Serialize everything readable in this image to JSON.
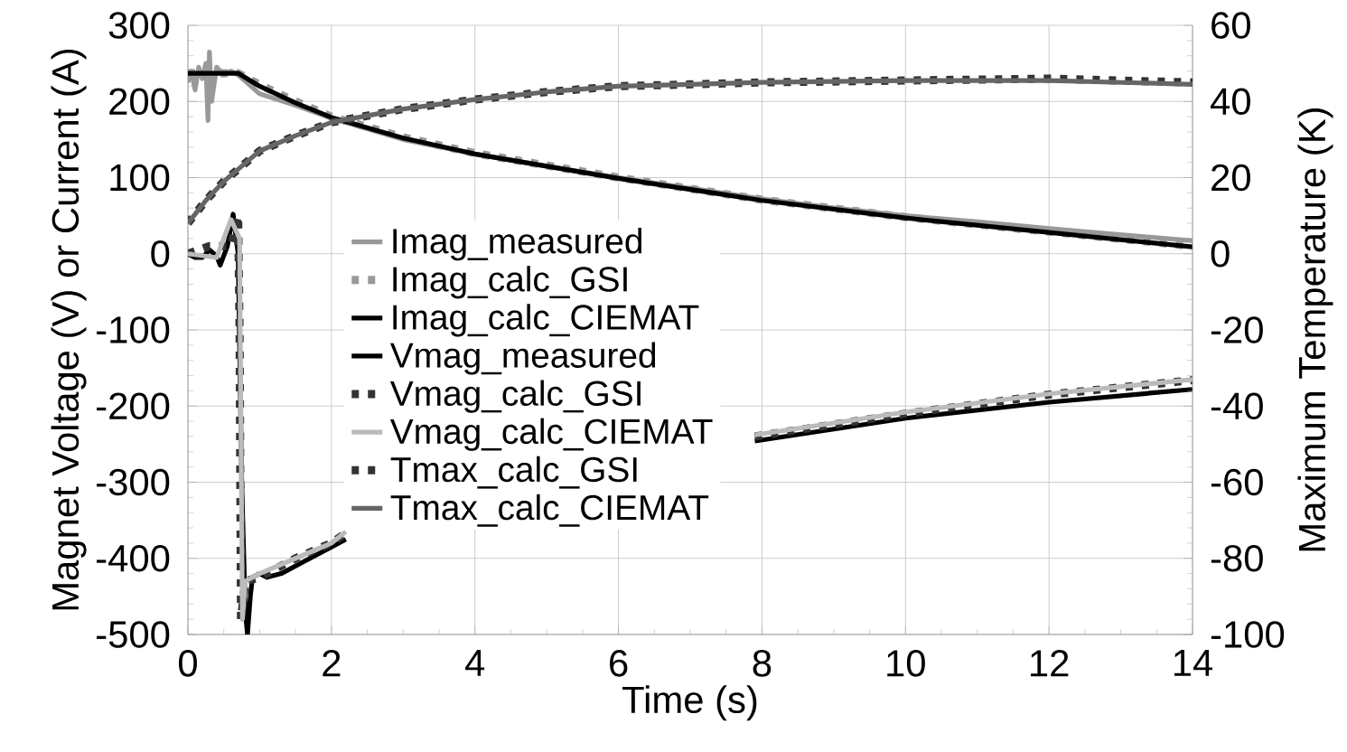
{
  "chart_data": {
    "type": "line",
    "xlabel": "Time (s)",
    "ylabel": "Magnet Voltage (V) or Current (A)",
    "y2label": "Maximum Temperature (K)",
    "xlim": [
      0,
      14
    ],
    "xticks": [
      0,
      2,
      4,
      6,
      8,
      10,
      12,
      14
    ],
    "ylim": [
      -500,
      300
    ],
    "yticks": [
      -500,
      -400,
      -300,
      -200,
      -100,
      0,
      100,
      200,
      300
    ],
    "y2lim": [
      -100,
      60
    ],
    "y2ticks": [
      -100,
      -80,
      -60,
      -40,
      -20,
      0,
      20,
      40,
      60
    ],
    "grid": true,
    "legend": "left",
    "series": [
      {
        "name": "Imag_measured",
        "color": "#999999",
        "line_style": "solid",
        "x": [
          0,
          0.05,
          0.1,
          0.15,
          0.2,
          0.25,
          0.28,
          0.3,
          0.33,
          0.4,
          0.5,
          0.6,
          0.7,
          1,
          1.5,
          2,
          3,
          4,
          5,
          6,
          7,
          8,
          9,
          10,
          11,
          12,
          13,
          14
        ],
        "values": [
          225,
          240,
          215,
          245,
          230,
          250,
          175,
          265,
          200,
          245,
          235,
          240,
          235,
          210,
          195,
          178,
          150,
          131,
          115,
          100,
          86,
          72,
          60,
          50,
          42,
          33,
          25,
          17
        ]
      },
      {
        "name": "Imag_calc_GSI",
        "color": "#999999",
        "line_style": "dotted",
        "x": [
          0,
          0.7,
          1,
          1.5,
          2,
          3,
          4,
          6,
          8,
          10,
          12,
          14
        ],
        "values": [
          237,
          237,
          222,
          200,
          180,
          153,
          132,
          100,
          71,
          48,
          29,
          10
        ]
      },
      {
        "name": "Imag_calc_CIEMAT",
        "color": "#000000",
        "line_style": "solid",
        "x": [
          0,
          0.7,
          1,
          1.5,
          2,
          3,
          4,
          6,
          8,
          10,
          12,
          14
        ],
        "values": [
          237,
          237,
          220,
          198,
          179,
          152,
          131,
          99,
          70,
          47,
          28,
          9
        ]
      },
      {
        "name": "Vmag_measured",
        "color": "#000000",
        "line_style": "solid",
        "x": [
          0,
          0.1,
          0.2,
          0.3,
          0.4,
          0.45,
          0.55,
          0.63,
          0.7,
          0.75,
          0.8,
          0.83,
          0.87,
          0.9,
          1,
          1.1,
          1.3,
          1.6,
          2,
          2.2,
          5,
          7.9,
          10,
          12,
          14
        ],
        "values": [
          0,
          -5,
          -5,
          5,
          -3,
          -15,
          10,
          52,
          0,
          -300,
          -470,
          -500,
          -450,
          -425,
          -420,
          -425,
          -420,
          -405,
          -385,
          -375,
          null,
          -246,
          -216,
          -195,
          -178
        ]
      },
      {
        "name": "Vmag_calc_GSI",
        "color": "#333333",
        "line_style": "dotted",
        "x": [
          0,
          0.3,
          0.6,
          0.7,
          0.72,
          0.74,
          0.8,
          1,
          1.5,
          2,
          2.2,
          5,
          7.9,
          10,
          12,
          14
        ],
        "values": [
          0,
          10,
          10,
          50,
          -100,
          -480,
          -430,
          -425,
          -400,
          -380,
          -367,
          null,
          -240,
          -210,
          -185,
          -166
        ]
      },
      {
        "name": "Vmag_calc_CIEMAT",
        "color": "#bbbbbb",
        "line_style": "solid",
        "x": [
          0,
          0.4,
          0.6,
          0.72,
          0.76,
          0.8,
          1,
          1.5,
          2,
          2.2,
          5,
          7.9,
          10,
          12,
          14
        ],
        "values": [
          0,
          -5,
          45,
          20,
          -480,
          -430,
          -420,
          -400,
          -380,
          -365,
          null,
          -238,
          -208,
          -184,
          -165
        ]
      },
      {
        "name": "Tmax_calc_GSI",
        "color": "#333333",
        "line_style": "dotted",
        "axis": "y2",
        "x": [
          0,
          0.25,
          0.5,
          0.75,
          1,
          1.5,
          2,
          3,
          4,
          5,
          6,
          7,
          8,
          10,
          12,
          14
        ],
        "values": [
          8,
          14,
          19,
          23,
          27,
          31,
          34.5,
          38,
          40.5,
          42.5,
          44,
          44.5,
          45,
          45.5,
          46,
          45
        ]
      },
      {
        "name": "Tmax_calc_CIEMAT",
        "color": "#666666",
        "line_style": "solid",
        "axis": "y2",
        "x": [
          0,
          0.25,
          0.5,
          0.75,
          1,
          1.5,
          2,
          3,
          4,
          5,
          6,
          7,
          8,
          10,
          12,
          14
        ],
        "values": [
          8,
          14,
          19,
          23,
          27,
          31,
          34.5,
          38,
          40.5,
          42.5,
          44,
          44.5,
          45,
          45.5,
          45.5,
          44.5
        ]
      }
    ]
  }
}
